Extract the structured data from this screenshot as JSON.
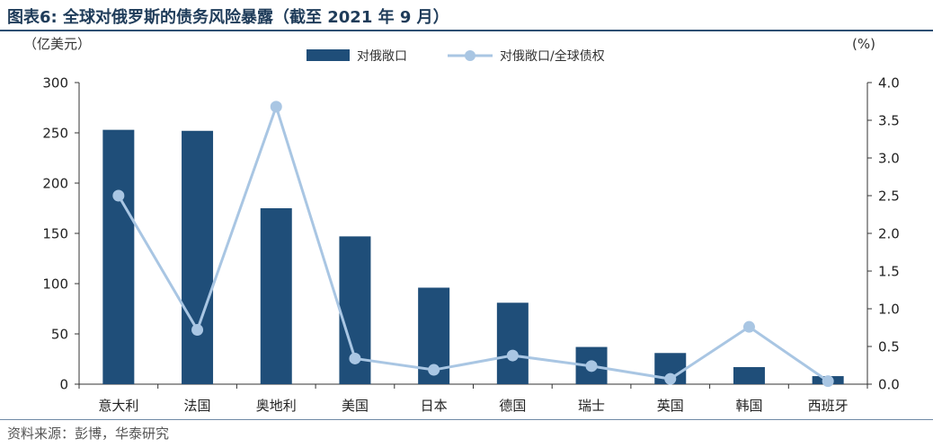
{
  "header": {
    "title": "图表6:  全球对俄罗斯的债务风险暴露（截至 2021 年 9 月）"
  },
  "footer": {
    "source": "资料来源：彭博，华泰研究"
  },
  "colors": {
    "bar": "#1f4e79",
    "line": "#a9c6e3",
    "axis": "#333333",
    "title": "#1f3c5a"
  },
  "chart_data": {
    "type": "bar",
    "categories": [
      "意大利",
      "法国",
      "奥地利",
      "美国",
      "日本",
      "德国",
      "瑞士",
      "英国",
      "韩国",
      "西班牙"
    ],
    "left_axis_unit": "（亿美元）",
    "right_axis_unit": "(%)",
    "left_ylim": [
      0,
      300
    ],
    "right_ylim": [
      0,
      4.0
    ],
    "left_ticks": [
      "0",
      "50",
      "100",
      "150",
      "200",
      "250",
      "300"
    ],
    "right_ticks": [
      "0.0",
      "0.5",
      "1.0",
      "1.5",
      "2.0",
      "2.5",
      "3.0",
      "3.5",
      "4.0"
    ],
    "legend_position": "top-center",
    "grid": false,
    "series": [
      {
        "name": "对俄敞口",
        "type": "bar",
        "axis": "left",
        "values": [
          253,
          252,
          175,
          147,
          96,
          81,
          37,
          31,
          17,
          8
        ]
      },
      {
        "name": "对俄敞口/全球债权",
        "type": "line",
        "axis": "right",
        "values": [
          2.5,
          0.72,
          3.68,
          0.34,
          0.19,
          0.38,
          0.24,
          0.07,
          0.76,
          0.04
        ]
      }
    ]
  }
}
